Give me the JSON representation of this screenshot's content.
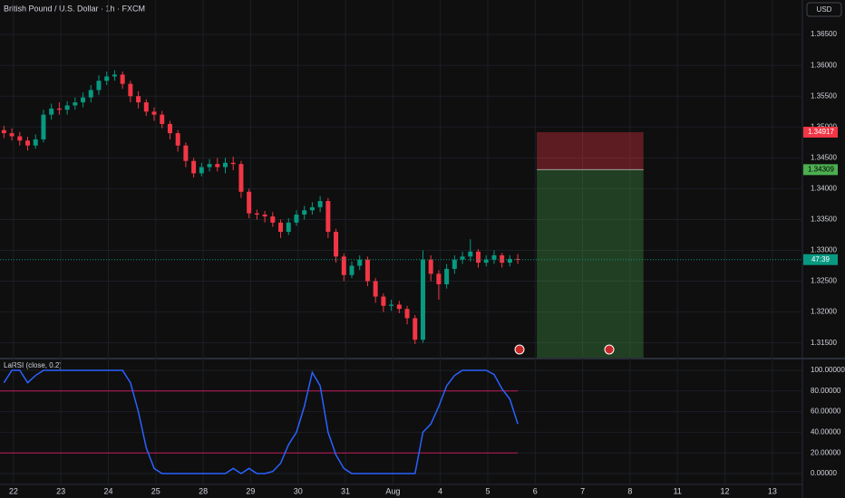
{
  "chart_data": [
    {
      "type": "candlestick",
      "title": "British Pound / U.S. Dollar · 1h · FXCM",
      "currency": "USD",
      "up_color": "#089981",
      "down_color": "#f23645",
      "xlim": [
        -0.5,
        101
      ],
      "ylim": [
        1.3126,
        1.3706
      ],
      "xticks": [
        {
          "value": 1.2,
          "label": "22"
        },
        {
          "value": 7.2,
          "label": "23"
        },
        {
          "value": 13.2,
          "label": "24"
        },
        {
          "value": 19.2,
          "label": "25"
        },
        {
          "value": 25.2,
          "label": "28"
        },
        {
          "value": 31.2,
          "label": "29"
        },
        {
          "value": 37.2,
          "label": "30"
        },
        {
          "value": 43.2,
          "label": "31"
        },
        {
          "value": 49.2,
          "label": "Aug"
        },
        {
          "value": 55.2,
          "label": "4"
        },
        {
          "value": 61.2,
          "label": "5"
        },
        {
          "value": 67.2,
          "label": "6"
        },
        {
          "value": 73.2,
          "label": "7"
        },
        {
          "value": 79.2,
          "label": "8"
        },
        {
          "value": 85.2,
          "label": "11"
        },
        {
          "value": 91.2,
          "label": "12"
        },
        {
          "value": 97.2,
          "label": "13"
        }
      ],
      "yticks": [
        {
          "value": 1.315,
          "label": "1.31500"
        },
        {
          "value": 1.32,
          "label": "1.32000"
        },
        {
          "value": 1.325,
          "label": "1.32500"
        },
        {
          "value": 1.33,
          "label": "1.33000"
        },
        {
          "value": 1.335,
          "label": "1.33500"
        },
        {
          "value": 1.34,
          "label": "1.34000"
        },
        {
          "value": 1.345,
          "label": "1.34500"
        },
        {
          "value": 1.35,
          "label": "1.35000"
        },
        {
          "value": 1.355,
          "label": "1.35500"
        },
        {
          "value": 1.36,
          "label": "1.36000"
        },
        {
          "value": 1.365,
          "label": "1.36500"
        }
      ],
      "grid": true,
      "open": [
        1.3495,
        1.349,
        1.3485,
        1.3478,
        1.347,
        1.348,
        1.352,
        1.353,
        1.3528,
        1.3535,
        1.354,
        1.3548,
        1.356,
        1.3575,
        1.3582,
        1.3585,
        1.357,
        1.355,
        1.354,
        1.3525,
        1.352,
        1.3505,
        1.349,
        1.347,
        1.3445,
        1.3425,
        1.3435,
        1.344,
        1.3435,
        1.3442,
        1.344,
        1.3395,
        1.336,
        1.3358,
        1.3355,
        1.3345,
        1.333,
        1.3345,
        1.3358,
        1.3365,
        1.337,
        1.338,
        1.333,
        1.329,
        1.326,
        1.3275,
        1.3285,
        1.325,
        1.3225,
        1.321,
        1.3212,
        1.3205,
        1.319,
        1.3155,
        1.3285,
        1.3262,
        1.3245,
        1.327,
        1.3285,
        1.329,
        1.3298,
        1.328,
        1.3285,
        1.3292,
        1.328,
        1.3286
      ],
      "high": [
        1.3502,
        1.3498,
        1.3492,
        1.3484,
        1.3488,
        1.3528,
        1.3538,
        1.354,
        1.3542,
        1.3548,
        1.3556,
        1.3568,
        1.3584,
        1.359,
        1.3592,
        1.359,
        1.3575,
        1.3558,
        1.3545,
        1.3532,
        1.3526,
        1.351,
        1.3495,
        1.3475,
        1.345,
        1.3442,
        1.3448,
        1.345,
        1.345,
        1.3452,
        1.3445,
        1.34,
        1.3366,
        1.3364,
        1.3362,
        1.335,
        1.3352,
        1.3365,
        1.3372,
        1.3378,
        1.3388,
        1.3385,
        1.3335,
        1.3295,
        1.3282,
        1.3292,
        1.329,
        1.3255,
        1.323,
        1.322,
        1.3218,
        1.321,
        1.3195,
        1.33,
        1.3292,
        1.3268,
        1.3278,
        1.3292,
        1.3298,
        1.3318,
        1.3302,
        1.3292,
        1.33,
        1.3296,
        1.3292,
        1.3294
      ],
      "low": [
        1.3482,
        1.3478,
        1.347,
        1.3462,
        1.3465,
        1.3475,
        1.3512,
        1.352,
        1.352,
        1.3528,
        1.3532,
        1.354,
        1.3552,
        1.3568,
        1.3575,
        1.3562,
        1.354,
        1.353,
        1.3518,
        1.351,
        1.3498,
        1.348,
        1.346,
        1.3435,
        1.3418,
        1.342,
        1.3428,
        1.3428,
        1.3425,
        1.343,
        1.3385,
        1.3352,
        1.335,
        1.3345,
        1.3338,
        1.332,
        1.3325,
        1.334,
        1.335,
        1.3358,
        1.3362,
        1.332,
        1.328,
        1.325,
        1.3255,
        1.3268,
        1.3242,
        1.3215,
        1.32,
        1.3202,
        1.3198,
        1.318,
        1.3148,
        1.315,
        1.325,
        1.322,
        1.3238,
        1.3262,
        1.3278,
        1.3282,
        1.3272,
        1.3274,
        1.3278,
        1.3272,
        1.3274,
        1.3278
      ],
      "close": [
        1.349,
        1.3485,
        1.3478,
        1.347,
        1.348,
        1.352,
        1.353,
        1.3528,
        1.3535,
        1.354,
        1.3548,
        1.356,
        1.3575,
        1.3582,
        1.3585,
        1.357,
        1.355,
        1.354,
        1.3525,
        1.352,
        1.3505,
        1.349,
        1.347,
        1.3445,
        1.3425,
        1.3435,
        1.344,
        1.3435,
        1.3442,
        1.344,
        1.3395,
        1.336,
        1.3358,
        1.3355,
        1.3345,
        1.333,
        1.3345,
        1.3358,
        1.3365,
        1.337,
        1.338,
        1.333,
        1.329,
        1.326,
        1.3275,
        1.3285,
        1.325,
        1.3225,
        1.321,
        1.3212,
        1.3205,
        1.319,
        1.3155,
        1.3285,
        1.3262,
        1.3245,
        1.327,
        1.3285,
        1.329,
        1.3298,
        1.328,
        1.3285,
        1.3292,
        1.328,
        1.3286,
        1.3285
      ],
      "countdown": "47:39",
      "position": {
        "start": 67.4,
        "end": 80.9,
        "stop": 1.34917,
        "entry": 1.34309,
        "stop_color": "#f23645",
        "entry_color": "#4caf50"
      }
    },
    {
      "type": "line",
      "title": "LaRSI (close, 0.2)",
      "color": "#2962ff",
      "level_color": "#c2185b",
      "xlim": [
        -0.5,
        101
      ],
      "ylim": [
        -10.5,
        110.5
      ],
      "levels": [
        80,
        20
      ],
      "yticks": [
        {
          "value": 0,
          "label": "0.00000"
        },
        {
          "value": 20,
          "label": "20.00000"
        },
        {
          "value": 40,
          "label": "40.00000"
        },
        {
          "value": 60,
          "label": "60.00000"
        },
        {
          "value": 80,
          "label": "80.00000"
        },
        {
          "value": 100,
          "label": "100.00000"
        }
      ],
      "values": [
        88,
        100,
        100,
        88,
        95,
        100,
        100,
        100,
        100,
        100,
        100,
        100,
        100,
        100,
        100,
        100,
        88,
        60,
        25,
        5,
        0,
        0,
        0,
        0,
        0,
        0,
        0,
        0,
        0,
        5,
        0,
        5,
        0,
        0,
        2,
        10,
        28,
        40,
        65,
        98,
        85,
        40,
        18,
        5,
        0,
        0,
        0,
        0,
        0,
        0,
        0,
        0,
        0,
        40,
        48,
        65,
        85,
        95,
        100,
        100,
        100,
        100,
        96,
        82,
        72,
        48
      ]
    }
  ]
}
